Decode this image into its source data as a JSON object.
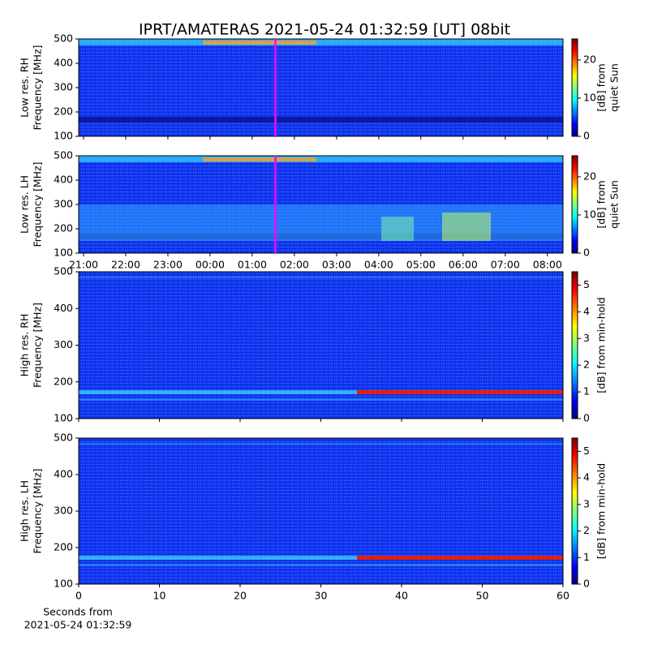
{
  "chart_data": [
    {
      "type": "heatmap",
      "title": "IPRT/AMATERAS 2021-05-24 01:32:59 [UT]   08bit",
      "ylabel": [
        "Low res. RH",
        "Frequency [MHz]"
      ],
      "ylim": [
        100,
        500
      ],
      "yticks": [
        100,
        200,
        300,
        400,
        500
      ],
      "xlim": [
        20.885,
        32.37
      ],
      "show_xticklabels": false,
      "xticks": [
        {
          "value": 21,
          "label": "21:00"
        },
        {
          "value": 22,
          "label": "22:00"
        },
        {
          "value": 23,
          "label": "23:00"
        },
        {
          "value": 24,
          "label": "00:00"
        },
        {
          "value": 25,
          "label": "01:00"
        },
        {
          "value": 26,
          "label": "02:00"
        },
        {
          "value": 27,
          "label": "03:00"
        },
        {
          "value": 28,
          "label": "04:00"
        },
        {
          "value": 29,
          "label": "05:00"
        },
        {
          "value": 30,
          "label": "06:00"
        },
        {
          "value": 31,
          "label": "07:00"
        },
        {
          "value": 32,
          "label": "08:00"
        }
      ],
      "cursor_x": 25.55,
      "cursor_color": "#ff00ff",
      "colorbar_label": [
        "[dB] from",
        "quiet Sun"
      ],
      "clim": [
        0,
        25.5
      ],
      "cticks": [
        0,
        10,
        20
      ],
      "colormap": "jet"
    },
    {
      "type": "heatmap",
      "ylabel": [
        "Low res. LH",
        "Frequency [MHz]"
      ],
      "ylim": [
        100,
        500
      ],
      "yticks": [
        100,
        200,
        300,
        400,
        500
      ],
      "xlim": [
        20.885,
        32.37
      ],
      "show_xticklabels": true,
      "xticks": [
        {
          "value": 21,
          "label": "21:00"
        },
        {
          "value": 22,
          "label": "22:00"
        },
        {
          "value": 23,
          "label": "23:00"
        },
        {
          "value": 24,
          "label": "00:00"
        },
        {
          "value": 25,
          "label": "01:00"
        },
        {
          "value": 26,
          "label": "02:00"
        },
        {
          "value": 27,
          "label": "03:00"
        },
        {
          "value": 28,
          "label": "04:00"
        },
        {
          "value": 29,
          "label": "05:00"
        },
        {
          "value": 30,
          "label": "06:00"
        },
        {
          "value": 31,
          "label": "07:00"
        },
        {
          "value": 32,
          "label": "08:00"
        }
      ],
      "cursor_x": 25.55,
      "cursor_color": "#ff00ff",
      "colorbar_label": [
        "[dB] from",
        "quiet Sun"
      ],
      "clim": [
        0,
        25.5
      ],
      "cticks": [
        0,
        10,
        20
      ],
      "colormap": "jet"
    },
    {
      "type": "heatmap",
      "ylabel": [
        "High res. RH",
        "Frequency [MHz]"
      ],
      "ylim": [
        100,
        500
      ],
      "yticks": [
        100,
        200,
        300,
        400,
        500
      ],
      "xlim": [
        0,
        60
      ],
      "xticks": [
        0,
        10,
        20,
        30,
        40,
        50,
        60
      ],
      "show_xticklabels": false,
      "colorbar_label": [
        "[dB] from min-hold"
      ],
      "clim": [
        0,
        5.5
      ],
      "cticks": [
        0,
        1,
        2,
        3,
        4,
        5
      ],
      "colormap": "jet"
    },
    {
      "type": "heatmap",
      "ylabel": [
        "High res. LH",
        "Frequency [MHz]"
      ],
      "ylim": [
        100,
        500
      ],
      "yticks": [
        100,
        200,
        300,
        400,
        500
      ],
      "xlim": [
        0,
        60
      ],
      "xticks": [
        0,
        10,
        20,
        30,
        40,
        50,
        60
      ],
      "show_xticklabels": true,
      "xlabel": [
        "Seconds from",
        "2021-05-24 01:32:59"
      ],
      "colorbar_label": [
        "[dB] from min-hold"
      ],
      "clim": [
        0,
        5.5
      ],
      "cticks": [
        0,
        1,
        2,
        3,
        4,
        5
      ],
      "colormap": "jet"
    }
  ]
}
